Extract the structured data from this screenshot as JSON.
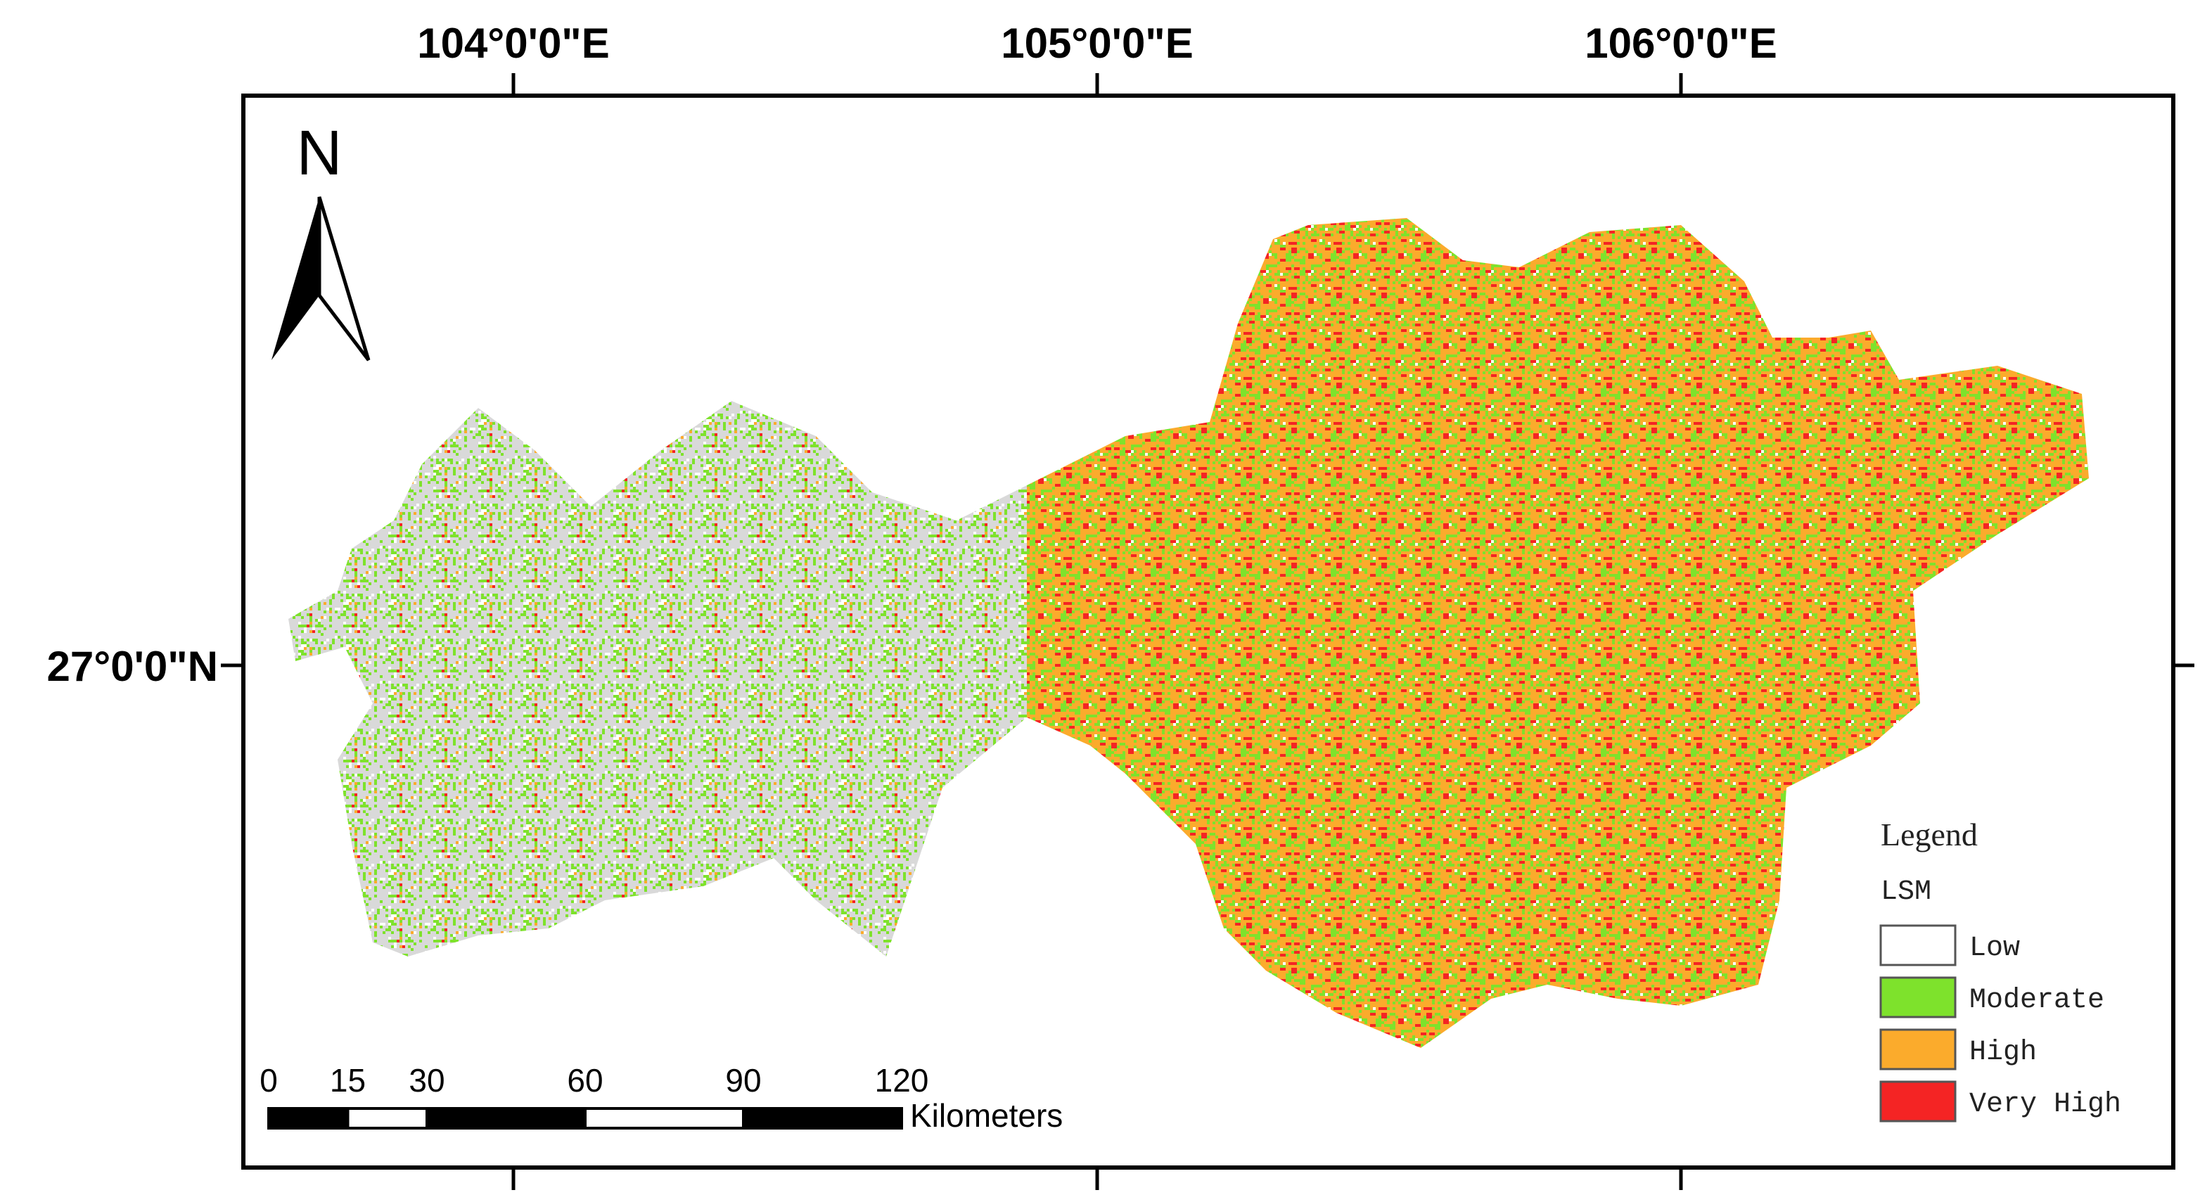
{
  "map": {
    "longitude_labels": [
      "104°0'0\"E",
      "105°0'0\"E",
      "106°0'0\"E"
    ],
    "latitude_labels": [
      "27°0'0\"N"
    ],
    "north_arrow": "N",
    "scale_bar": {
      "ticks": [
        0,
        15,
        30,
        60,
        90,
        120
      ],
      "unit": "Kilometers"
    },
    "legend": {
      "title": "Legend",
      "subtitle": "LSM",
      "items": [
        {
          "label": "Low",
          "color": "#ffffff"
        },
        {
          "label": "Moderate",
          "color": "#7ee22c"
        },
        {
          "label": "High",
          "color": "#fbab2c"
        },
        {
          "label": "Very High",
          "color": "#f42424"
        }
      ]
    }
  }
}
